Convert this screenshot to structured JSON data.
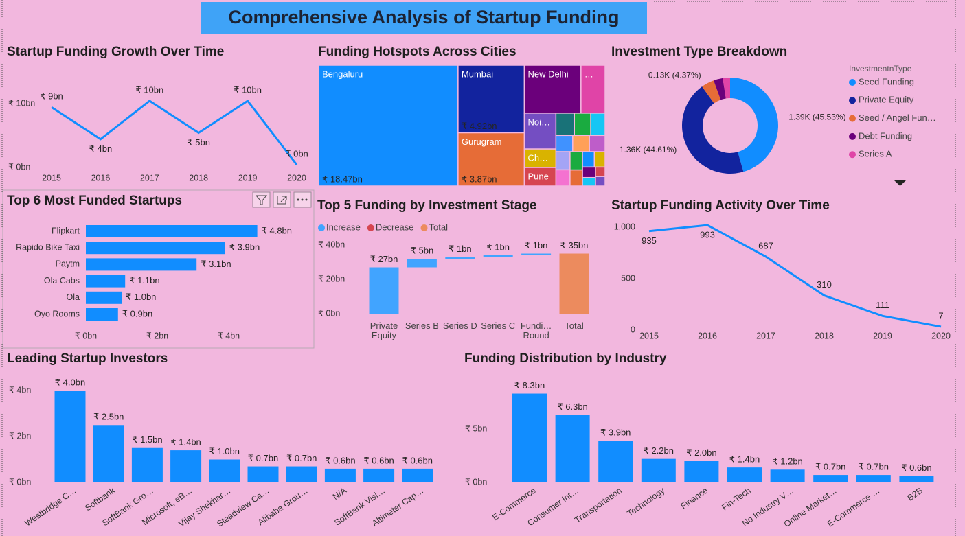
{
  "title": "Comprehensive Analysis of Startup Funding",
  "chart_data": [
    {
      "type": "line",
      "title": "Startup Funding Growth Over Time",
      "categories": [
        "2015",
        "2016",
        "2017",
        "2018",
        "2019",
        "2020"
      ],
      "values": [
        9,
        4,
        10,
        5,
        10,
        0
      ],
      "value_labels": [
        "₹ 9bn",
        "₹ 4bn",
        "₹ 10bn",
        "₹ 5bn",
        "₹ 10bn",
        "₹ 0bn"
      ],
      "color": "#118dff",
      "ylim": [
        0,
        10
      ],
      "yticks": [
        {
          "value": 0,
          "label": "₹ 0bn"
        },
        {
          "value": 10,
          "label": "₹ 10bn"
        }
      ]
    },
    {
      "type": "treemap",
      "title": "Funding Hotspots Across Cities",
      "categories": [
        "Bengaluru",
        "Mumbai",
        "Gurugram",
        "New Delhi",
        "…",
        "Noi…",
        "Ch…",
        "Pune",
        null,
        null,
        null,
        null,
        null,
        null,
        null,
        null,
        null,
        null,
        null,
        null,
        null,
        null,
        null,
        null
      ],
      "values": [
        18.47,
        4.92,
        3.87,
        2.98,
        1.27,
        1.24,
        0.64,
        0.64,
        0.45,
        0.4,
        0.35,
        0.3,
        0.3,
        0.28,
        0.28,
        0.25,
        0.25,
        0.22,
        0.2,
        0.18,
        0.15,
        0.12,
        0.1,
        0.1
      ],
      "value_labels": [
        "₹ 18.47bn",
        "₹ 4.92bn",
        "₹ 3.87bn",
        null,
        null,
        null,
        null,
        null,
        null,
        null,
        null,
        null,
        null,
        null,
        null,
        null,
        null,
        null,
        null,
        null,
        null,
        null,
        null,
        null
      ],
      "colors": [
        "#118dff",
        "#12239e",
        "#e66c37",
        "#6b007b",
        "#e044a7",
        "#744ec2",
        "#d9b300",
        "#d64550",
        "#197278",
        "#1aab40",
        "#15c6f4",
        "#4092ff",
        "#ffa058",
        "#be5dc9",
        "#a4a4f5",
        "#f472d0",
        "#1aab40",
        "#e66c37",
        "#118dff",
        "#d9b300",
        "#6b007b",
        "#15c6f4",
        "#d64550",
        "#744ec2"
      ]
    },
    {
      "type": "donut",
      "title": "Investment Type Breakdown",
      "legend_title": "InvestmentnType",
      "categories": [
        "Seed Funding",
        "Private Equity",
        "Seed / Angel Fun…",
        "Debt Funding",
        "Series A"
      ],
      "values": [
        1390,
        1360,
        133,
        95,
        75
      ],
      "value_labels": [
        "1.39K (45.53%)",
        "1.36K (44.61%)",
        "0.13K (4.37%)",
        null,
        null
      ],
      "colors": [
        "#118dff",
        "#12239e",
        "#e66c37",
        "#6b007b",
        "#e044a7"
      ]
    },
    {
      "type": "bar",
      "orientation": "horizontal",
      "title": "Top 6 Most Funded Startups",
      "categories": [
        "Flipkart",
        "Rapido Bike Taxi",
        "Paytm",
        "Ola Cabs",
        "Ola",
        "Oyo Rooms"
      ],
      "values": [
        4.8,
        3.9,
        3.1,
        1.1,
        1.0,
        0.9
      ],
      "value_labels": [
        "₹ 4.8bn",
        "₹ 3.9bn",
        "₹ 3.1bn",
        "₹ 1.1bn",
        "₹ 1.0bn",
        "₹ 0.9bn"
      ],
      "color": "#118dff",
      "xlim": [
        0,
        6
      ],
      "xticks": [
        {
          "value": 0,
          "label": "₹ 0bn"
        },
        {
          "value": 2,
          "label": "₹ 2bn"
        },
        {
          "value": 4,
          "label": "₹ 4bn"
        }
      ]
    },
    {
      "type": "waterfall",
      "title": "Top 5 Funding by Investment Stage",
      "legend": [
        {
          "name": "Increase",
          "color": "#41a4ff"
        },
        {
          "name": "Decrease",
          "color": "#d64550"
        },
        {
          "name": "Total",
          "color": "#ec8b5e"
        }
      ],
      "categories": [
        "Private Equity",
        "Series B",
        "Series D",
        "Series C",
        "Fundi… Round"
      ],
      "values": [
        27,
        5,
        1,
        1,
        1
      ],
      "value_labels": [
        "₹ 27bn",
        "₹ 5bn",
        "₹ 1bn",
        "₹ 1bn",
        "₹ 1bn"
      ],
      "total": 35,
      "total_label": "₹ 35bn",
      "ylim": [
        0,
        40
      ],
      "yticks": [
        {
          "value": 0,
          "label": "₹ 0bn"
        },
        {
          "value": 20,
          "label": "₹ 20bn"
        },
        {
          "value": 40,
          "label": "₹ 40bn"
        }
      ]
    },
    {
      "type": "line",
      "title": "Startup Funding Activity Over Time",
      "categories": [
        "2015",
        "2016",
        "2017",
        "2018",
        "2019",
        "2020"
      ],
      "values": [
        935,
        993,
        687,
        310,
        111,
        7
      ],
      "color": "#118dff",
      "ylim": [
        0,
        1000
      ],
      "yticks": [
        0,
        500,
        {
          "value": 1000,
          "label": "1,000"
        }
      ]
    },
    {
      "type": "bar",
      "title": "Leading Startup Investors",
      "categories": [
        "Westbridge C…",
        "Softbank",
        "SoftBank Gro…",
        "Microsoft, eB…",
        "Vijay Shekhar…",
        "Steadview Ca…",
        "Alibaba Grou…",
        "N/A",
        "SoftBank Visi…",
        "Altimeter Cap…"
      ],
      "values": [
        4.0,
        2.5,
        1.5,
        1.4,
        1.0,
        0.7,
        0.7,
        0.6,
        0.6,
        0.6
      ],
      "value_labels": [
        "₹ 4.0bn",
        "₹ 2.5bn",
        "₹ 1.5bn",
        "₹ 1.4bn",
        "₹ 1.0bn",
        "₹ 0.7bn",
        "₹ 0.7bn",
        "₹ 0.6bn",
        "₹ 0.6bn",
        "₹ 0.6bn"
      ],
      "color": "#118dff",
      "ylim": [
        0,
        4.7
      ],
      "yticks": [
        {
          "value": 0,
          "label": "₹ 0bn"
        },
        {
          "value": 2,
          "label": "₹ 2bn"
        },
        {
          "value": 4,
          "label": "₹ 4bn"
        }
      ]
    },
    {
      "type": "bar",
      "title": "Funding Distribution by Industry",
      "categories": [
        "E-Commerce",
        "Consumer Int…",
        "Transportation",
        "Technology",
        "Finance",
        "Fin-Tech",
        "No Industry V…",
        "Online Market…",
        "E-Commerce …",
        "B2B"
      ],
      "values": [
        8.3,
        6.3,
        3.9,
        2.2,
        2.0,
        1.4,
        1.2,
        0.7,
        0.7,
        0.6
      ],
      "value_labels": [
        "₹ 8.3bn",
        "₹ 6.3bn",
        "₹ 3.9bn",
        "₹ 2.2bn",
        "₹ 2.0bn",
        "₹ 1.4bn",
        "₹ 1.2bn",
        "₹ 0.7bn",
        "₹ 0.7bn",
        "₹ 0.6bn"
      ],
      "color": "#118dff",
      "ylim": [
        0,
        9.8
      ],
      "yticks": [
        {
          "value": 0,
          "label": "₹ 0bn"
        },
        {
          "value": 5,
          "label": "₹ 5bn"
        }
      ]
    }
  ]
}
